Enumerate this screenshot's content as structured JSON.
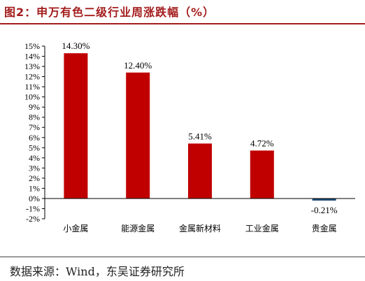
{
  "figure": {
    "title": "图2：申万有色二级行业周涨跌幅（%）",
    "source": "数据来源：Wind，东吴证券研究所",
    "colors": {
      "title": "#a41c1c",
      "positive_bar": "#c00000",
      "negative_bar": "#1f4e79"
    }
  },
  "chart_data": {
    "type": "bar",
    "title": "图2：申万有色二级行业周涨跌幅（%）",
    "categories": [
      "小金属",
      "能源金属",
      "金属新材料",
      "工业金属",
      "贵金属"
    ],
    "values": [
      14.3,
      12.4,
      5.41,
      4.72,
      -0.21
    ],
    "value_labels": [
      "14.30%",
      "12.40%",
      "5.41%",
      "4.72%",
      "-0.21%"
    ],
    "ylim": [
      -2,
      15
    ],
    "ytick_labels": [
      "-2%",
      "-1%",
      "0%",
      "1%",
      "2%",
      "3%",
      "4%",
      "5%",
      "6%",
      "7%",
      "8%",
      "9%",
      "10%",
      "11%",
      "12%",
      "13%",
      "14%",
      "15%"
    ],
    "xlabel": "",
    "ylabel": "",
    "grid": false,
    "legend": "none"
  }
}
